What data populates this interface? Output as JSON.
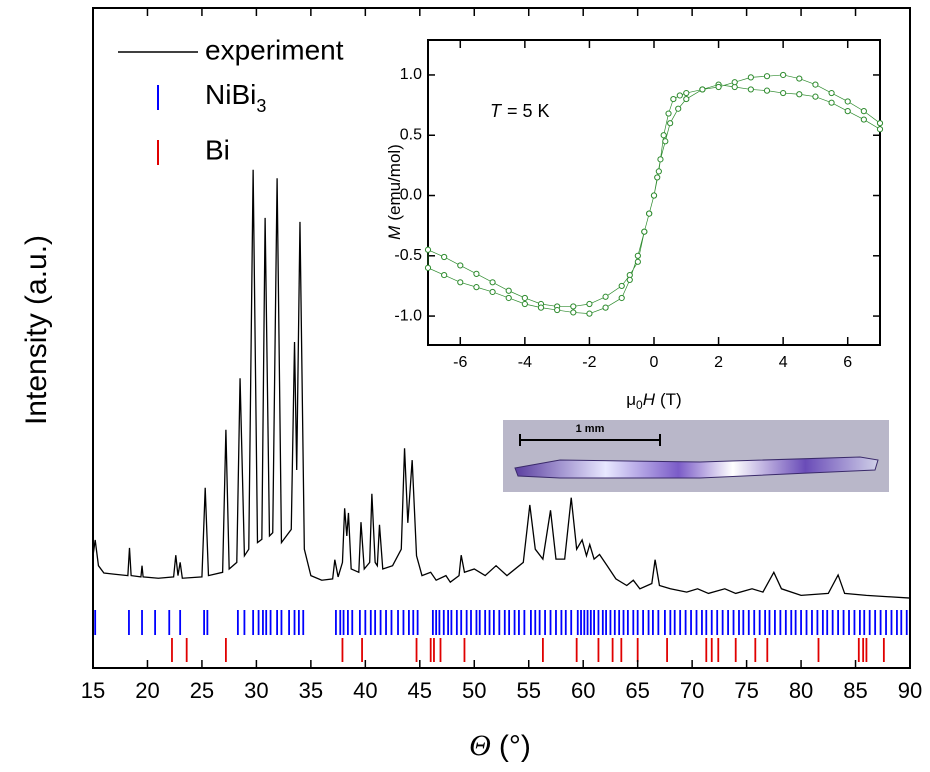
{
  "chart_data": [
    {
      "type": "line",
      "ylabel": "Intensity (a.u.)",
      "xlabel": {
        "symbol": "Θ",
        "unit": "(°)"
      },
      "xlim": [
        15,
        90
      ],
      "xticks": [
        15,
        20,
        25,
        30,
        35,
        40,
        45,
        50,
        55,
        60,
        65,
        70,
        75,
        80,
        85,
        90
      ],
      "ylim": [
        0,
        100
      ],
      "x": [
        15.0,
        15.2,
        15.5,
        16.0,
        17.0,
        18.2,
        18.35,
        18.5,
        19.4,
        19.5,
        19.6,
        21.0,
        22.4,
        22.6,
        22.8,
        23.0,
        23.2,
        25.0,
        25.3,
        25.6,
        26.9,
        27.2,
        27.5,
        28.2,
        28.5,
        28.9,
        29.3,
        29.7,
        30.1,
        30.5,
        30.8,
        31.2,
        31.5,
        31.9,
        32.3,
        33.2,
        33.5,
        33.7,
        34.0,
        34.4,
        35.0,
        36.0,
        37.0,
        37.2,
        37.5,
        37.9,
        38.1,
        38.3,
        38.45,
        38.7,
        39.4,
        39.6,
        39.9,
        40.4,
        40.6,
        40.9,
        41.1,
        41.3,
        41.6,
        42.5,
        43.3,
        43.6,
        43.9,
        44.3,
        44.7,
        45.2,
        46.0,
        46.5,
        47.4,
        47.8,
        48.6,
        48.8,
        49.1,
        50.0,
        51.0,
        52.0,
        53.0,
        54.5,
        55.1,
        55.6,
        56.3,
        57.0,
        57.5,
        58.3,
        58.9,
        59.4,
        59.9,
        60.3,
        60.6,
        61.0,
        61.5,
        62.2,
        63.0,
        64.0,
        64.6,
        65.2,
        66.3,
        66.6,
        67.0,
        68.0,
        69.5,
        70.5,
        71.5,
        73.0,
        74.0,
        75.5,
        76.5,
        77.5,
        78.2,
        80.0,
        82.5,
        83.4,
        84.0,
        86.0,
        88.0,
        90.0
      ],
      "series": [
        {
          "name": "experiment",
          "color": "#000000",
          "values": [
            17,
            19.4,
            15.5,
            14.4,
            14.2,
            14.0,
            18.2,
            14.0,
            13.8,
            15.5,
            13.8,
            13.6,
            13.8,
            17.1,
            14.0,
            16.0,
            13.6,
            13.8,
            27.3,
            14.0,
            14.5,
            36.1,
            15.0,
            16.0,
            43.9,
            17.0,
            18.0,
            75.5,
            19.0,
            19.5,
            68.2,
            20.0,
            20.5,
            74.2,
            19.0,
            21.0,
            49.4,
            30.0,
            67.6,
            18.0,
            14.0,
            13.3,
            13.5,
            16.4,
            13.8,
            16.0,
            24.2,
            20.0,
            23.5,
            15.0,
            14.5,
            22.1,
            15.0,
            16.0,
            26.4,
            16.0,
            15.5,
            21.7,
            15.0,
            15.5,
            18.0,
            33.3,
            22.0,
            31.5,
            17.0,
            14.0,
            14.5,
            13.3,
            14.0,
            13.0,
            14.0,
            17.1,
            14.5,
            15.0,
            14.0,
            15.5,
            14.0,
            16.0,
            24.7,
            18.0,
            16.5,
            23.9,
            16.5,
            16.5,
            25.8,
            18.0,
            19.4,
            17.0,
            18.7,
            16.5,
            17.2,
            15.5,
            13.5,
            12.5,
            13.3,
            12.0,
            12.8,
            16.4,
            12.5,
            12.0,
            11.5,
            12.0,
            11.3,
            12.0,
            11.3,
            12.0,
            11.5,
            14.5,
            12.0,
            11.0,
            11.3,
            14.1,
            11.3,
            11.0,
            10.8,
            10.6
          ]
        }
      ],
      "reflections": [
        {
          "name": "NiBi",
          "name_sub": "3",
          "color": "#0000ff",
          "positions": [
            15.2,
            18.3,
            19.5,
            20.7,
            22.0,
            23.0,
            25.2,
            25.5,
            28.3,
            28.9,
            29.7,
            30.2,
            30.6,
            30.9,
            31.3,
            31.9,
            32.3,
            33.0,
            33.5,
            33.9,
            34.3,
            37.3,
            37.7,
            38.0,
            38.4,
            38.8,
            39.5,
            40.0,
            40.5,
            40.9,
            41.4,
            41.9,
            42.4,
            43.0,
            43.5,
            44.0,
            44.4,
            44.8,
            46.2,
            46.5,
            46.8,
            47.2,
            47.6,
            47.9,
            48.4,
            48.8,
            49.3,
            49.7,
            50.2,
            50.5,
            51.0,
            51.4,
            51.8,
            52.3,
            52.8,
            53.2,
            53.7,
            54.1,
            54.6,
            55.2,
            55.6,
            56.0,
            56.5,
            57.0,
            57.5,
            58.0,
            58.4,
            58.9,
            59.5,
            59.8,
            60.1,
            60.4,
            60.7,
            61.0,
            61.4,
            61.8,
            62.1,
            62.5,
            62.9,
            63.3,
            63.7,
            64.1,
            64.6,
            65.0,
            65.5,
            66.0,
            66.4,
            66.9,
            67.5,
            68.0,
            68.4,
            68.9,
            69.4,
            69.9,
            70.4,
            70.9,
            71.3,
            71.8,
            72.3,
            72.8,
            73.3,
            73.8,
            74.3,
            74.7,
            75.2,
            75.7,
            76.2,
            76.7,
            77.1,
            77.6,
            78.1,
            78.6,
            79.1,
            79.5,
            80.0,
            80.5,
            81.0,
            81.5,
            82.0,
            82.4,
            82.9,
            83.4,
            83.9,
            84.4,
            84.9,
            85.4,
            85.8,
            86.3,
            86.8,
            87.3,
            87.8,
            88.3,
            88.8,
            89.2,
            89.7
          ]
        },
        {
          "name": "Bi",
          "color": "#e00000",
          "positions": [
            22.25,
            23.6,
            27.2,
            37.9,
            39.7,
            44.7,
            46.0,
            46.3,
            46.9,
            49.1,
            56.3,
            59.4,
            61.4,
            62.7,
            63.5,
            65.0,
            67.7,
            71.3,
            71.8,
            72.4,
            74.0,
            75.8,
            76.9,
            81.6,
            85.3,
            85.7,
            86.0,
            87.6
          ]
        }
      ],
      "photo_scale": "1 mm"
    },
    {
      "type": "scatter",
      "xlabel": {
        "prefix": "μ",
        "sub": "0",
        "symbol": "H",
        "unit": "(T)"
      },
      "ylabel": {
        "symbol": "M",
        "unit": "(emu/mol)"
      },
      "annotation": {
        "symbol": "T",
        "text": "= 5 K"
      },
      "xlim": [
        -7,
        7
      ],
      "xticks": [
        -6,
        -4,
        -2,
        0,
        2,
        4,
        6
      ],
      "ylim": [
        -1.24,
        1.29
      ],
      "yticks": [
        {
          "value": -1,
          "label": "-1.0"
        },
        -0.5,
        {
          "value": 0,
          "label": "0.0"
        },
        0.5,
        {
          "value": 1,
          "label": "1.0"
        }
      ],
      "color": "#2e8b2e",
      "x": [
        7,
        6.5,
        6,
        5.5,
        5,
        4.5,
        4,
        3.5,
        3,
        2.5,
        2,
        1.5,
        1,
        0.75,
        0.5,
        0.35,
        0.2,
        0.1,
        0,
        -0.15,
        -0.3,
        -0.5,
        -0.75,
        -1,
        -1.5,
        -2,
        -2.5,
        -3,
        -3.5,
        -4,
        -4.5,
        -5,
        -5.5,
        -6,
        -6.5,
        -7,
        -7,
        -6.5,
        -6,
        -5.5,
        -5,
        -4.5,
        -4,
        -3.5,
        -3,
        -2.5,
        -2,
        -1.5,
        -1,
        -0.75,
        -0.5,
        -0.3,
        -0.15,
        0,
        0.15,
        0.3,
        0.45,
        0.6,
        0.8,
        1,
        1.5,
        2,
        2.5,
        3,
        3.5,
        4,
        4.5,
        5,
        5.5,
        6,
        6.5,
        7
      ],
      "values": [
        0.55,
        0.63,
        0.7,
        0.77,
        0.82,
        0.84,
        0.85,
        0.87,
        0.88,
        0.9,
        0.92,
        0.88,
        0.8,
        0.72,
        0.6,
        0.45,
        0.3,
        0.15,
        0,
        -0.15,
        -0.3,
        -0.55,
        -0.66,
        -0.75,
        -0.84,
        -0.9,
        -0.92,
        -0.92,
        -0.9,
        -0.85,
        -0.79,
        -0.72,
        -0.65,
        -0.58,
        -0.51,
        -0.45,
        -0.6,
        -0.66,
        -0.72,
        -0.76,
        -0.8,
        -0.85,
        -0.9,
        -0.93,
        -0.95,
        -0.97,
        -0.98,
        -0.93,
        -0.85,
        -0.7,
        -0.5,
        -0.3,
        -0.15,
        0,
        0.2,
        0.5,
        0.68,
        0.8,
        0.83,
        0.85,
        0.88,
        0.9,
        0.94,
        0.98,
        0.99,
        1.0,
        0.97,
        0.92,
        0.85,
        0.78,
        0.7,
        0.6
      ]
    }
  ]
}
